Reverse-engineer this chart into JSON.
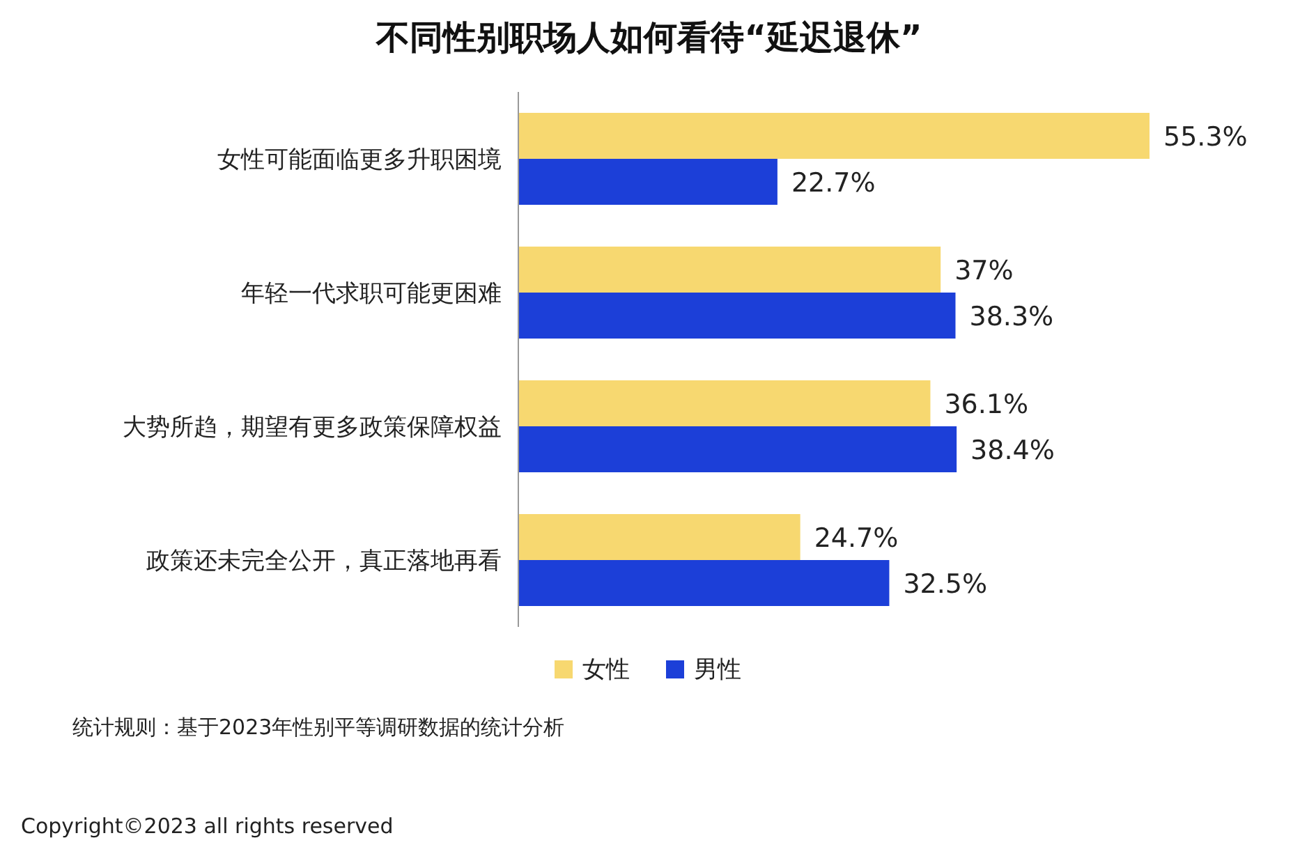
{
  "chart_data": {
    "type": "bar",
    "orientation": "horizontal",
    "title": "不同性别职场人如何看待“延迟退休”",
    "categories": [
      "女性可能面临更多升职困境",
      "年轻一代求职可能更困难",
      "大势所趋，期望有更多政策保障权益",
      "政策还未完全公开，真正落地再看"
    ],
    "series": [
      {
        "name": "女性",
        "color": "#f7d870",
        "values": [
          55.3,
          37,
          36.1,
          24.7
        ],
        "value_labels": [
          "55.3%",
          "37%",
          "36.1%",
          "24.7%"
        ]
      },
      {
        "name": "男性",
        "color": "#1c3fd8",
        "values": [
          22.7,
          38.3,
          38.4,
          32.5
        ],
        "value_labels": [
          "22.7%",
          "38.3%",
          "38.4%",
          "32.5%"
        ]
      }
    ],
    "legend": "bottom",
    "annotations": [
      "统计规则：基于2023年性别平等调研数据的统计分析",
      "Copyright©2023 all rights reserved"
    ]
  }
}
